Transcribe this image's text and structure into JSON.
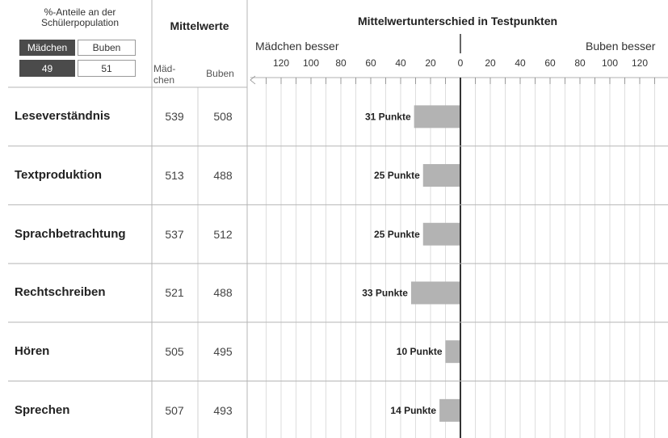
{
  "population": {
    "title_line1": "%-Anteile an der",
    "title_line2": "Schülerpopulation",
    "maedchen_label": "Mädchen",
    "buben_label": "Buben",
    "maedchen_value": "49",
    "buben_value": "51"
  },
  "headers": {
    "means": "Mittelwerte",
    "difference": "Mittelwertunterschied in Testpunkten",
    "col_maedchen_line1": "Mäd-",
    "col_maedchen_line2": "chen",
    "col_buben": "Buben",
    "girls_better": "Mädchen besser",
    "boys_better": "Buben besser"
  },
  "chart_data": {
    "type": "bar",
    "orientation": "horizontal",
    "title": "Mittelwertunterschied in Testpunkten",
    "categories": [
      "Leseverständnis",
      "Textproduktion",
      "Sprachbetrachtung",
      "Rechtschreiben",
      "Hören",
      "Sprechen"
    ],
    "means_maedchen": [
      "539",
      "513",
      "537",
      "521",
      "505",
      "507"
    ],
    "means_buben": [
      "508",
      "488",
      "512",
      "488",
      "495",
      "493"
    ],
    "series": [
      {
        "name": "Mittelwertunterschied",
        "direction": "Mädchen besser",
        "values": [
          31,
          25,
          25,
          33,
          10,
          14
        ]
      }
    ],
    "value_labels": [
      "31 Punkte",
      "25 Punkte",
      "25 Punkte",
      "33 Punkte",
      "10 Punkte",
      "14 Punkte"
    ],
    "x_ticks_left": [
      "120",
      "100",
      "80",
      "60",
      "40",
      "20",
      "0"
    ],
    "x_ticks_right": [
      "20",
      "40",
      "60",
      "80",
      "100",
      "120"
    ],
    "xlim": [
      -135,
      135
    ],
    "bar_color": "#b3b3b3",
    "grid": true
  }
}
